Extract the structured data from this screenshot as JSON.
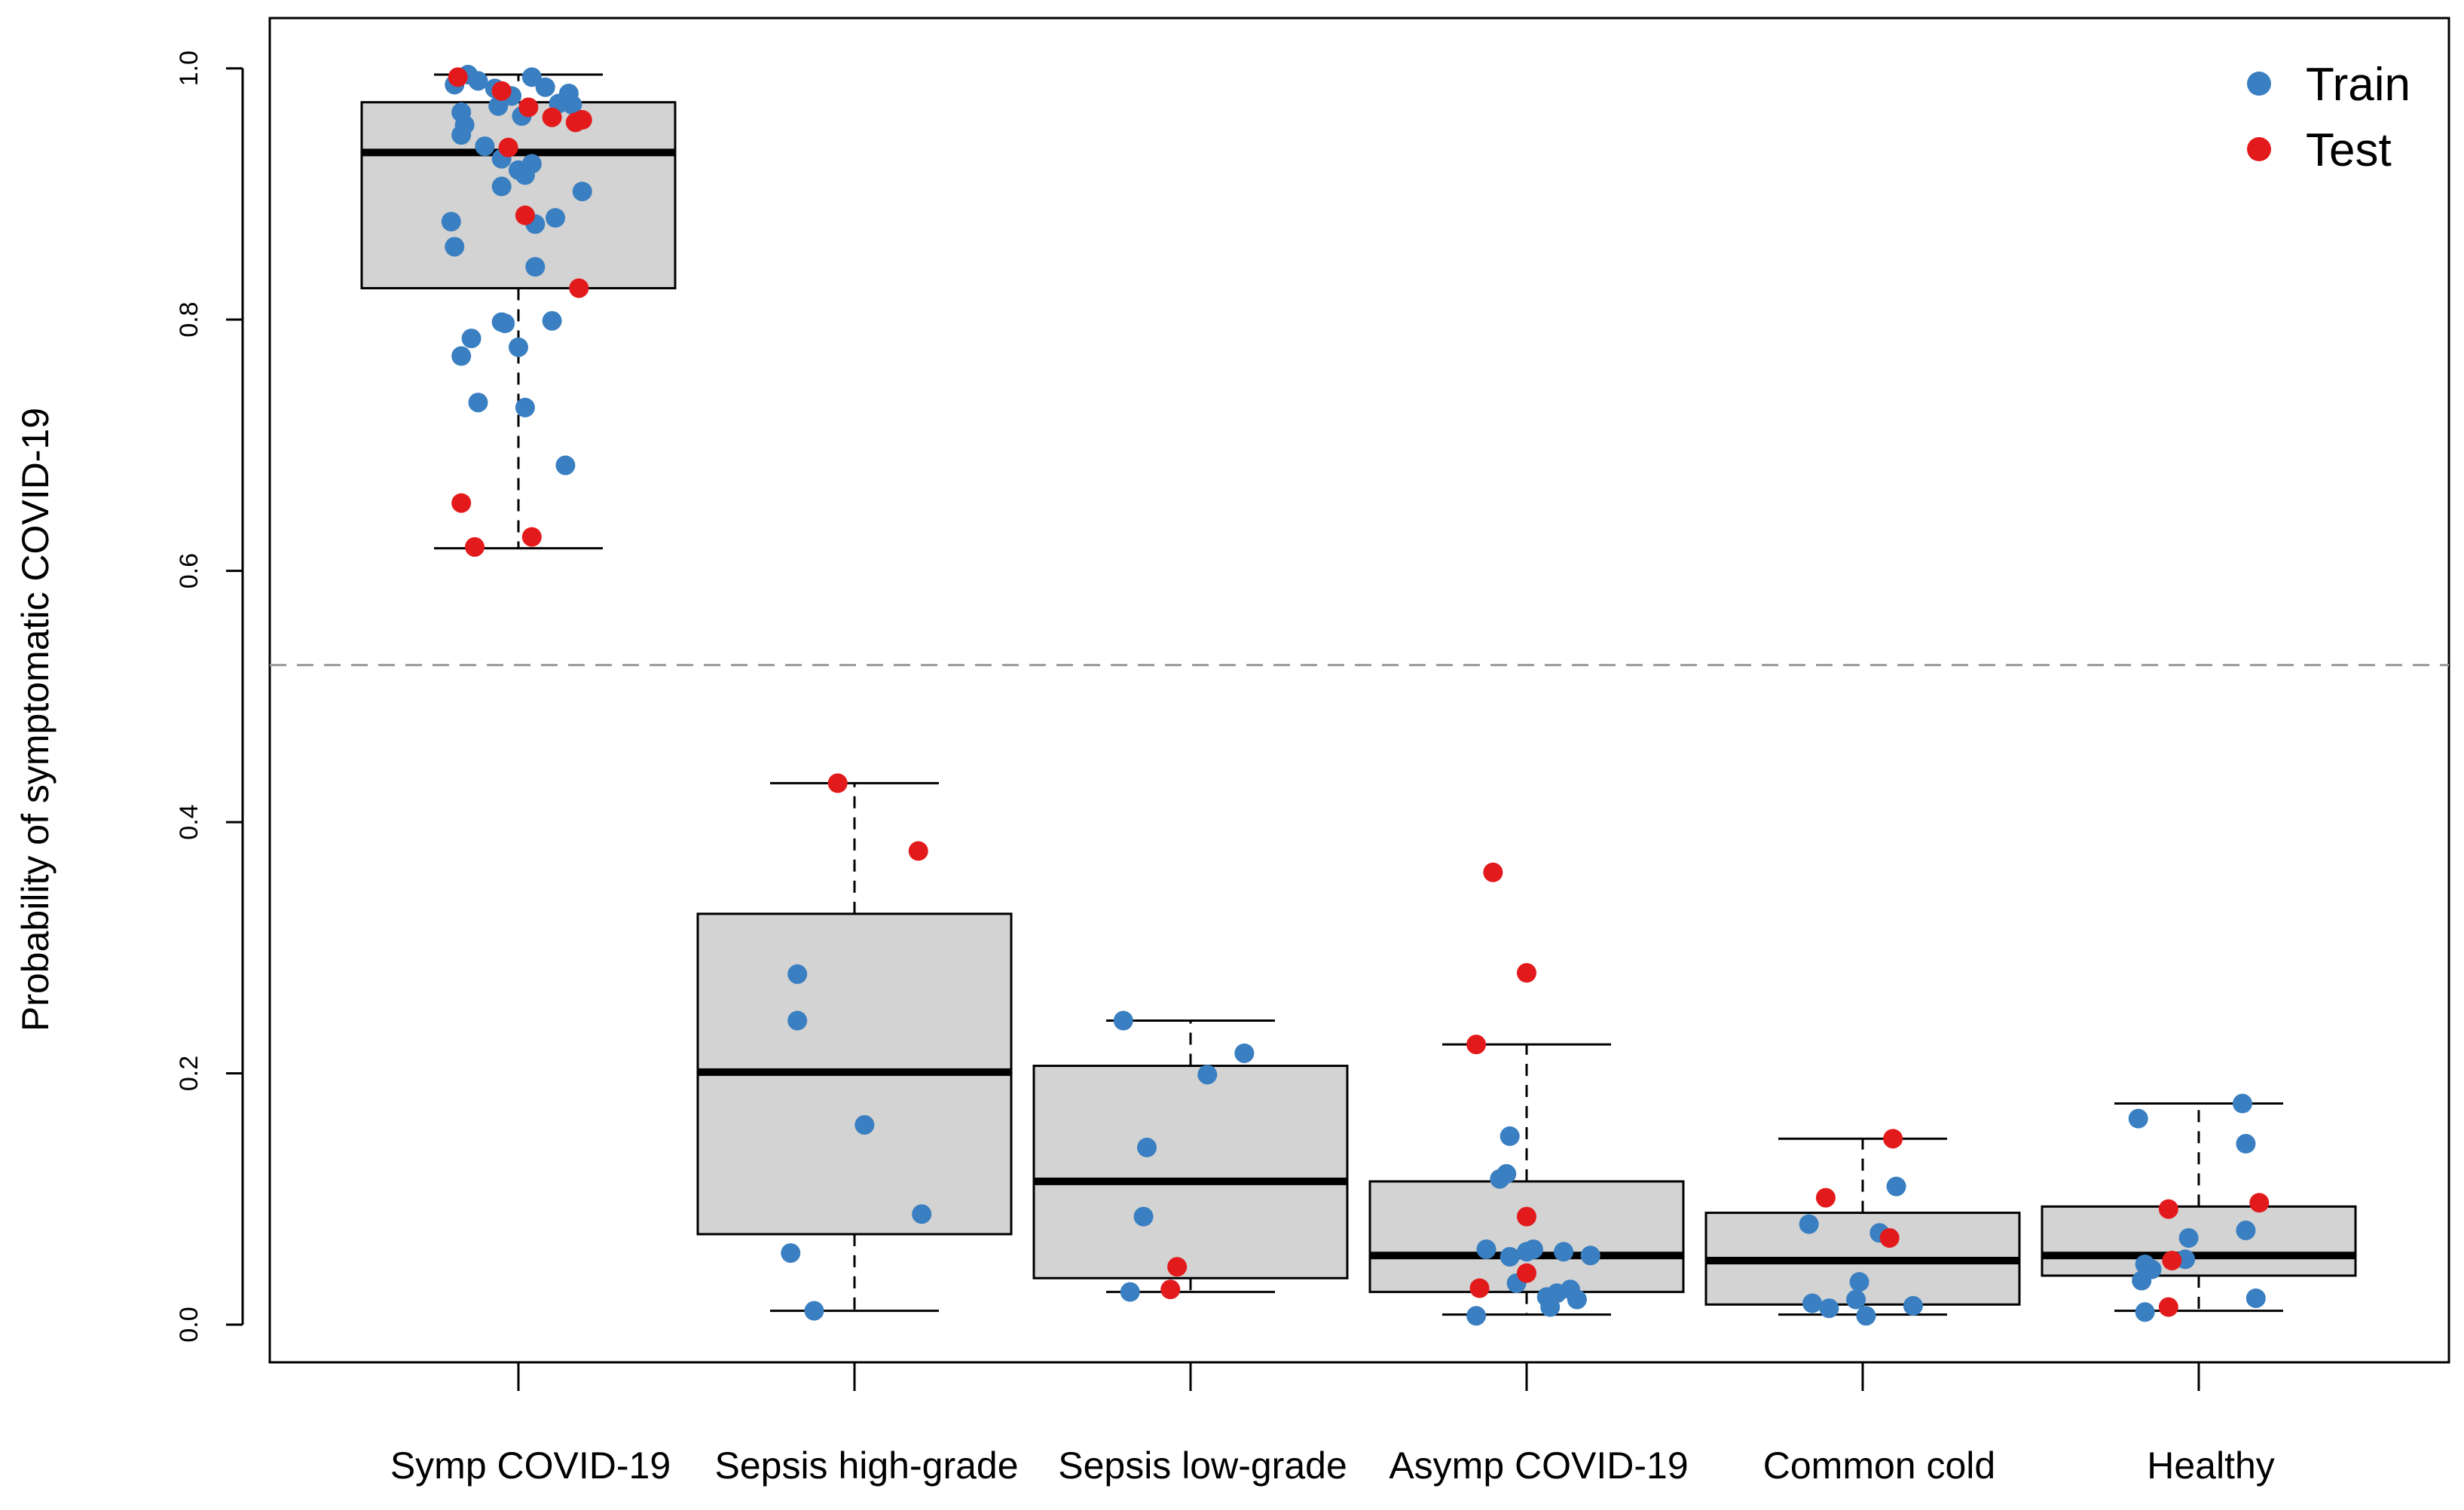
{
  "chart_data": {
    "type": "boxplot",
    "title": "",
    "xlabel": "",
    "ylabel": "Probability of symptomatic COVID-19",
    "ylim": [
      -0.03,
      1.04
    ],
    "yticks": [
      "0.0",
      "0.2",
      "0.4",
      "0.6",
      "0.8",
      "1.0"
    ],
    "threshold": 0.525,
    "categories": [
      "Symp COVID-19",
      "Sepsis high-grade",
      "Sepsis low-grade",
      "Asymp COVID-19",
      "Common cold",
      "Healthy"
    ],
    "boxes": [
      {
        "category": "Symp COVID-19",
        "whisker_low": 0.618,
        "q1": 0.825,
        "median": 0.933,
        "q3": 0.973,
        "whisker_high": 0.995
      },
      {
        "category": "Sepsis high-grade",
        "whisker_low": 0.011,
        "q1": 0.072,
        "median": 0.201,
        "q3": 0.327,
        "whisker_high": 0.431
      },
      {
        "category": "Sepsis low-grade",
        "whisker_low": 0.026,
        "q1": 0.037,
        "median": 0.114,
        "q3": 0.206,
        "whisker_high": 0.242
      },
      {
        "category": "Asymp COVID-19",
        "whisker_low": 0.008,
        "q1": 0.026,
        "median": 0.055,
        "q3": 0.114,
        "whisker_high": 0.223
      },
      {
        "category": "Common cold",
        "whisker_low": 0.008,
        "q1": 0.016,
        "median": 0.051,
        "q3": 0.089,
        "whisker_high": 0.148
      },
      {
        "category": "Healthy",
        "whisker_low": 0.011,
        "q1": 0.039,
        "median": 0.055,
        "q3": 0.094,
        "whisker_high": 0.176
      }
    ],
    "series": [
      {
        "name": "Train",
        "color": "#3a7fc1",
        "points": [
          {
            "category": 0,
            "x_offset": -0.19,
            "y": 0.987
          },
          {
            "category": 0,
            "x_offset": -0.15,
            "y": 0.995
          },
          {
            "category": 0,
            "x_offset": -0.12,
            "y": 0.99
          },
          {
            "category": 0,
            "x_offset": -0.07,
            "y": 0.984
          },
          {
            "category": 0,
            "x_offset": -0.02,
            "y": 0.978
          },
          {
            "category": 0,
            "x_offset": 0.04,
            "y": 0.993
          },
          {
            "category": 0,
            "x_offset": 0.08,
            "y": 0.985
          },
          {
            "category": 0,
            "x_offset": 0.12,
            "y": 0.972
          },
          {
            "category": 0,
            "x_offset": 0.15,
            "y": 0.98
          },
          {
            "category": 0,
            "x_offset": -0.17,
            "y": 0.965
          },
          {
            "category": 0,
            "x_offset": -0.06,
            "y": 0.97
          },
          {
            "category": 0,
            "x_offset": 0.01,
            "y": 0.962
          },
          {
            "category": 0,
            "x_offset": 0.16,
            "y": 0.971
          },
          {
            "category": 0,
            "x_offset": -0.16,
            "y": 0.955
          },
          {
            "category": 0,
            "x_offset": -0.17,
            "y": 0.947
          },
          {
            "category": 0,
            "x_offset": -0.1,
            "y": 0.938
          },
          {
            "category": 0,
            "x_offset": -0.05,
            "y": 0.928
          },
          {
            "category": 0,
            "x_offset": 0.0,
            "y": 0.919
          },
          {
            "category": 0,
            "x_offset": 0.04,
            "y": 0.924
          },
          {
            "category": 0,
            "x_offset": 0.02,
            "y": 0.915
          },
          {
            "category": 0,
            "x_offset": -0.05,
            "y": 0.906
          },
          {
            "category": 0,
            "x_offset": 0.19,
            "y": 0.902
          },
          {
            "category": 0,
            "x_offset": -0.2,
            "y": 0.878
          },
          {
            "category": 0,
            "x_offset": 0.05,
            "y": 0.876
          },
          {
            "category": 0,
            "x_offset": 0.11,
            "y": 0.881
          },
          {
            "category": 0,
            "x_offset": -0.19,
            "y": 0.858
          },
          {
            "category": 0,
            "x_offset": 0.05,
            "y": 0.842
          },
          {
            "category": 0,
            "x_offset": -0.05,
            "y": 0.798
          },
          {
            "category": 0,
            "x_offset": -0.04,
            "y": 0.797
          },
          {
            "category": 0,
            "x_offset": 0.1,
            "y": 0.799
          },
          {
            "category": 0,
            "x_offset": -0.14,
            "y": 0.785
          },
          {
            "category": 0,
            "x_offset": 0.0,
            "y": 0.778
          },
          {
            "category": 0,
            "x_offset": -0.17,
            "y": 0.771
          },
          {
            "category": 0,
            "x_offset": -0.12,
            "y": 0.734
          },
          {
            "category": 0,
            "x_offset": 0.02,
            "y": 0.73
          },
          {
            "category": 0,
            "x_offset": 0.14,
            "y": 0.684
          },
          {
            "category": 1,
            "x_offset": -0.17,
            "y": 0.279
          },
          {
            "category": 1,
            "x_offset": -0.17,
            "y": 0.242
          },
          {
            "category": 1,
            "x_offset": 0.03,
            "y": 0.159
          },
          {
            "category": 1,
            "x_offset": 0.2,
            "y": 0.088
          },
          {
            "category": 1,
            "x_offset": -0.19,
            "y": 0.057
          },
          {
            "category": 1,
            "x_offset": -0.12,
            "y": 0.011
          },
          {
            "category": 2,
            "x_offset": -0.2,
            "y": 0.242
          },
          {
            "category": 2,
            "x_offset": 0.16,
            "y": 0.216
          },
          {
            "category": 2,
            "x_offset": 0.05,
            "y": 0.199
          },
          {
            "category": 2,
            "x_offset": -0.13,
            "y": 0.141
          },
          {
            "category": 2,
            "x_offset": -0.14,
            "y": 0.086
          },
          {
            "category": 2,
            "x_offset": -0.18,
            "y": 0.026
          },
          {
            "category": 3,
            "x_offset": -0.05,
            "y": 0.15
          },
          {
            "category": 3,
            "x_offset": -0.06,
            "y": 0.12
          },
          {
            "category": 3,
            "x_offset": -0.08,
            "y": 0.116
          },
          {
            "category": 3,
            "x_offset": -0.12,
            "y": 0.06
          },
          {
            "category": 3,
            "x_offset": -0.05,
            "y": 0.054
          },
          {
            "category": 3,
            "x_offset": 0.0,
            "y": 0.058
          },
          {
            "category": 3,
            "x_offset": 0.02,
            "y": 0.06
          },
          {
            "category": 3,
            "x_offset": 0.11,
            "y": 0.058
          },
          {
            "category": 3,
            "x_offset": 0.19,
            "y": 0.055
          },
          {
            "category": 3,
            "x_offset": -0.03,
            "y": 0.033
          },
          {
            "category": 3,
            "x_offset": 0.13,
            "y": 0.028
          },
          {
            "category": 3,
            "x_offset": 0.09,
            "y": 0.025
          },
          {
            "category": 3,
            "x_offset": 0.06,
            "y": 0.022
          },
          {
            "category": 3,
            "x_offset": 0.15,
            "y": 0.02
          },
          {
            "category": 3,
            "x_offset": 0.07,
            "y": 0.014
          },
          {
            "category": 3,
            "x_offset": -0.15,
            "y": 0.007
          },
          {
            "category": 4,
            "x_offset": 0.1,
            "y": 0.11
          },
          {
            "category": 4,
            "x_offset": -0.16,
            "y": 0.08
          },
          {
            "category": 4,
            "x_offset": 0.05,
            "y": 0.073
          },
          {
            "category": 4,
            "x_offset": -0.01,
            "y": 0.034
          },
          {
            "category": 4,
            "x_offset": -0.15,
            "y": 0.017
          },
          {
            "category": 4,
            "x_offset": -0.1,
            "y": 0.013
          },
          {
            "category": 4,
            "x_offset": -0.02,
            "y": 0.02
          },
          {
            "category": 4,
            "x_offset": 0.15,
            "y": 0.015
          },
          {
            "category": 4,
            "x_offset": 0.01,
            "y": 0.007
          },
          {
            "category": 5,
            "x_offset": 0.13,
            "y": 0.176
          },
          {
            "category": 5,
            "x_offset": -0.18,
            "y": 0.164
          },
          {
            "category": 5,
            "x_offset": 0.14,
            "y": 0.144
          },
          {
            "category": 5,
            "x_offset": 0.14,
            "y": 0.075
          },
          {
            "category": 5,
            "x_offset": -0.03,
            "y": 0.069
          },
          {
            "category": 5,
            "x_offset": -0.16,
            "y": 0.048
          },
          {
            "category": 5,
            "x_offset": -0.04,
            "y": 0.052
          },
          {
            "category": 5,
            "x_offset": -0.14,
            "y": 0.044
          },
          {
            "category": 5,
            "x_offset": -0.17,
            "y": 0.035
          },
          {
            "category": 5,
            "x_offset": 0.17,
            "y": 0.021
          },
          {
            "category": 5,
            "x_offset": -0.16,
            "y": 0.01
          }
        ]
      },
      {
        "name": "Test",
        "color": "#e31a1c",
        "points": [
          {
            "category": 0,
            "x_offset": -0.18,
            "y": 0.993
          },
          {
            "category": 0,
            "x_offset": -0.05,
            "y": 0.982
          },
          {
            "category": 0,
            "x_offset": 0.03,
            "y": 0.969
          },
          {
            "category": 0,
            "x_offset": 0.1,
            "y": 0.961
          },
          {
            "category": 0,
            "x_offset": 0.17,
            "y": 0.957
          },
          {
            "category": 0,
            "x_offset": 0.19,
            "y": 0.959
          },
          {
            "category": 0,
            "x_offset": -0.03,
            "y": 0.937
          },
          {
            "category": 0,
            "x_offset": 0.02,
            "y": 0.883
          },
          {
            "category": 0,
            "x_offset": 0.18,
            "y": 0.825
          },
          {
            "category": 0,
            "x_offset": -0.17,
            "y": 0.654
          },
          {
            "category": 0,
            "x_offset": 0.04,
            "y": 0.627
          },
          {
            "category": 0,
            "x_offset": -0.13,
            "y": 0.619
          },
          {
            "category": 1,
            "x_offset": -0.05,
            "y": 0.431
          },
          {
            "category": 1,
            "x_offset": 0.19,
            "y": 0.377
          },
          {
            "category": 2,
            "x_offset": -0.04,
            "y": 0.046
          },
          {
            "category": 2,
            "x_offset": -0.06,
            "y": 0.028
          },
          {
            "category": 3,
            "x_offset": -0.1,
            "y": 0.36
          },
          {
            "category": 3,
            "x_offset": 0.0,
            "y": 0.28
          },
          {
            "category": 3,
            "x_offset": -0.15,
            "y": 0.223
          },
          {
            "category": 3,
            "x_offset": 0.0,
            "y": 0.086
          },
          {
            "category": 3,
            "x_offset": 0.0,
            "y": 0.041
          },
          {
            "category": 3,
            "x_offset": -0.14,
            "y": 0.029
          },
          {
            "category": 4,
            "x_offset": 0.09,
            "y": 0.148
          },
          {
            "category": 4,
            "x_offset": -0.11,
            "y": 0.101
          },
          {
            "category": 4,
            "x_offset": 0.08,
            "y": 0.069
          },
          {
            "category": 5,
            "x_offset": 0.18,
            "y": 0.097
          },
          {
            "category": 5,
            "x_offset": -0.09,
            "y": 0.092
          },
          {
            "category": 5,
            "x_offset": -0.08,
            "y": 0.051
          },
          {
            "category": 5,
            "x_offset": -0.09,
            "y": 0.014
          }
        ]
      }
    ],
    "legend": {
      "position": "top-right",
      "entries": [
        "Train",
        "Test"
      ]
    }
  }
}
